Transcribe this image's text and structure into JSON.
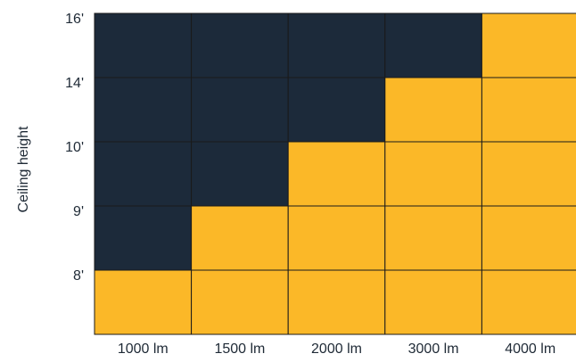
{
  "chart_data": {
    "type": "heatmap",
    "title": "",
    "xlabel": "",
    "ylabel": "Ceiling height",
    "x_categories": [
      "1000 lm",
      "1500 lm",
      "2000 lm",
      "3000 lm",
      "4000 lm"
    ],
    "y_tick_labels": [
      "16'",
      "14'",
      "10'",
      "9'",
      "8'"
    ],
    "rows_top_to_bottom": [
      [
        "dark",
        "dark",
        "dark",
        "dark",
        "yellow"
      ],
      [
        "dark",
        "dark",
        "dark",
        "yellow",
        "yellow"
      ],
      [
        "dark",
        "dark",
        "yellow",
        "yellow",
        "yellow"
      ],
      [
        "dark",
        "yellow",
        "yellow",
        "yellow",
        "yellow"
      ],
      [
        "yellow",
        "yellow",
        "yellow",
        "yellow",
        "yellow"
      ]
    ],
    "colors": {
      "dark": "#1c2a3a",
      "yellow": "#fbb828",
      "grid": "#1a1a1a"
    }
  }
}
